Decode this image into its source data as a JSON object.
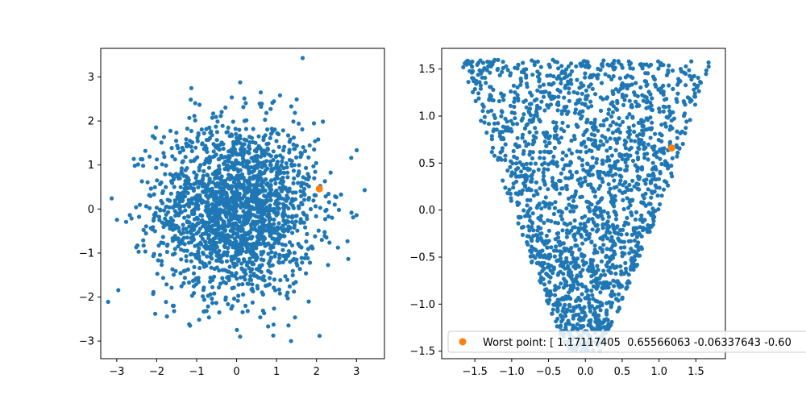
{
  "chart_data": [
    {
      "type": "scatter",
      "title": "",
      "xlabel": "",
      "ylabel": "",
      "xlim": [
        -3.4,
        3.7
      ],
      "ylim": [
        -3.4,
        3.65
      ],
      "xticks": [
        -3,
        -2,
        -1,
        0,
        1,
        2,
        3
      ],
      "yticks": [
        -3,
        -2,
        -1,
        0,
        1,
        2,
        3
      ],
      "grid": false,
      "legend": null,
      "series": [
        {
          "color": "#1f77b4",
          "marker": "circle",
          "point_count": 2000,
          "distribution": "2D standard normal, centered at (0, 0)"
        },
        {
          "color": "#ff7f0e",
          "marker": "circle",
          "points": [
            [
              2.07,
              0.46
            ]
          ]
        }
      ]
    },
    {
      "type": "scatter",
      "title": "",
      "xlabel": "",
      "ylabel": "",
      "xlim": [
        -1.95,
        1.9
      ],
      "ylim": [
        -1.58,
        1.72
      ],
      "xticks": [
        -1.5,
        -1.0,
        -0.5,
        0.0,
        0.5,
        1.0,
        1.5
      ],
      "yticks": [
        -1.5,
        -1.0,
        -0.5,
        0.0,
        0.5,
        1.0,
        1.5
      ],
      "grid": false,
      "legend_position": "bottom-center, clipped at figure right edge",
      "series": [
        {
          "color": "#1f77b4",
          "marker": "circle",
          "point_count": 2000,
          "distribution": "roughly triangular cloud: wide at top (y≈1.6, x from -1.8 to 1.7), narrowing to x≈0 at y≈-1.5"
        },
        {
          "name": "Worst point: [ 1.17117405  0.65566063 -0.06337643 -0.60",
          "color": "#ff7f0e",
          "marker": "circle",
          "points": [
            [
              1.17,
              0.66
            ]
          ]
        }
      ]
    }
  ]
}
